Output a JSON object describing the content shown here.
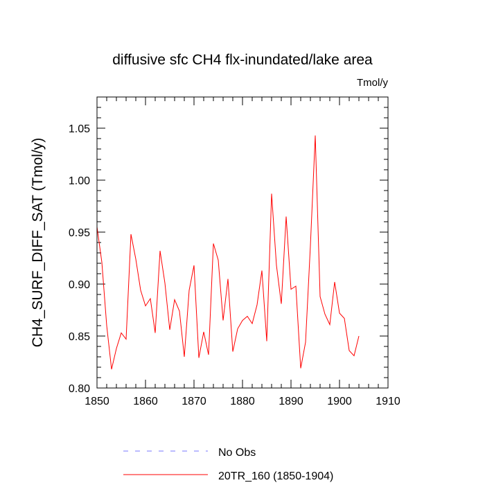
{
  "chart_data": {
    "type": "line",
    "title": "diffusive sfc CH4 flx-inundated/lake area",
    "units_label": "Tmol/y",
    "xlabel": "",
    "ylabel": "CH4_SURF_DIFF_SAT  (Tmol/y)",
    "xlim": [
      1850,
      1910
    ],
    "ylim": [
      0.8,
      1.08
    ],
    "x_ticks": [
      1850,
      1860,
      1870,
      1880,
      1890,
      1900,
      1910
    ],
    "x_tick_labels": [
      "1850",
      "1860",
      "1870",
      "1880",
      "1890",
      "1900",
      "1910"
    ],
    "y_ticks": [
      0.8,
      0.85,
      0.9,
      0.95,
      1.0,
      1.05
    ],
    "y_tick_labels": [
      "0.80",
      "0.85",
      "0.90",
      "0.95",
      "1.00",
      "1.05"
    ],
    "grid": false,
    "legend_position": "bottom-left",
    "series": [
      {
        "name": "20TR_160 (1850-1904)",
        "color": "#ff0000",
        "dash": "solid",
        "x": [
          1850,
          1851,
          1852,
          1853,
          1854,
          1855,
          1856,
          1857,
          1858,
          1859,
          1860,
          1861,
          1862,
          1863,
          1864,
          1865,
          1866,
          1867,
          1868,
          1869,
          1870,
          1871,
          1872,
          1873,
          1874,
          1875,
          1876,
          1877,
          1878,
          1879,
          1880,
          1881,
          1882,
          1883,
          1884,
          1885,
          1886,
          1887,
          1888,
          1889,
          1890,
          1891,
          1892,
          1893,
          1894,
          1895,
          1896,
          1897,
          1898,
          1899,
          1900,
          1901,
          1902,
          1903,
          1904
        ],
        "values": [
          0.955,
          0.921,
          0.86,
          0.818,
          0.838,
          0.853,
          0.847,
          0.948,
          0.924,
          0.894,
          0.879,
          0.886,
          0.853,
          0.932,
          0.901,
          0.856,
          0.885,
          0.874,
          0.83,
          0.894,
          0.918,
          0.829,
          0.854,
          0.832,
          0.939,
          0.923,
          0.865,
          0.905,
          0.835,
          0.857,
          0.865,
          0.869,
          0.862,
          0.88,
          0.913,
          0.845,
          0.987,
          0.918,
          0.881,
          0.965,
          0.895,
          0.898,
          0.819,
          0.844,
          0.937,
          1.043,
          0.888,
          0.871,
          0.861,
          0.902,
          0.872,
          0.867,
          0.836,
          0.831,
          0.85
        ]
      }
    ],
    "legend": [
      {
        "label": "No Obs",
        "color": "#7777ff",
        "dash": "dashed"
      },
      {
        "label": "20TR_160 (1850-1904)",
        "color": "#ff0000",
        "dash": "solid"
      }
    ]
  }
}
